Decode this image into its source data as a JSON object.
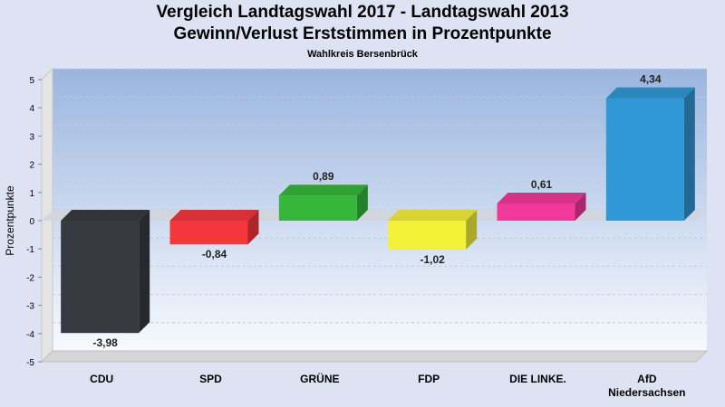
{
  "chart_data": {
    "type": "bar",
    "title": "Vergleich Landtagswahl 2017 - Landtagswahl 2013",
    "subtitle_line": "Gewinn/Verlust Erststimmen in Prozentpunkte",
    "region": "Wahlkreis Bersenbrück",
    "ylabel": "Prozentpunkte",
    "ylim": [
      -5,
      5
    ],
    "yticks": [
      5,
      4,
      3,
      2,
      1,
      0,
      -1,
      -2,
      -3,
      -4,
      -5
    ],
    "grid": true,
    "legend": "none",
    "categories": [
      {
        "label": [
          "CDU"
        ],
        "value": -3.98,
        "value_label": "-3,98",
        "color": "#363a40"
      },
      {
        "label": [
          "SPD"
        ],
        "value": -0.84,
        "value_label": "-0,84",
        "color": "#f5363d"
      },
      {
        "label": [
          "GRÜNE"
        ],
        "value": 0.89,
        "value_label": "0,89",
        "color": "#36b73c"
      },
      {
        "label": [
          "FDP"
        ],
        "value": -1.02,
        "value_label": "-1,02",
        "color": "#f4f13a"
      },
      {
        "label": [
          "DIE LINKE."
        ],
        "value": 0.61,
        "value_label": "0,61",
        "color": "#f2399b"
      },
      {
        "label": [
          "AfD",
          "Niedersachsen"
        ],
        "value": 4.34,
        "value_label": "4,34",
        "color": "#3098d5"
      }
    ]
  }
}
